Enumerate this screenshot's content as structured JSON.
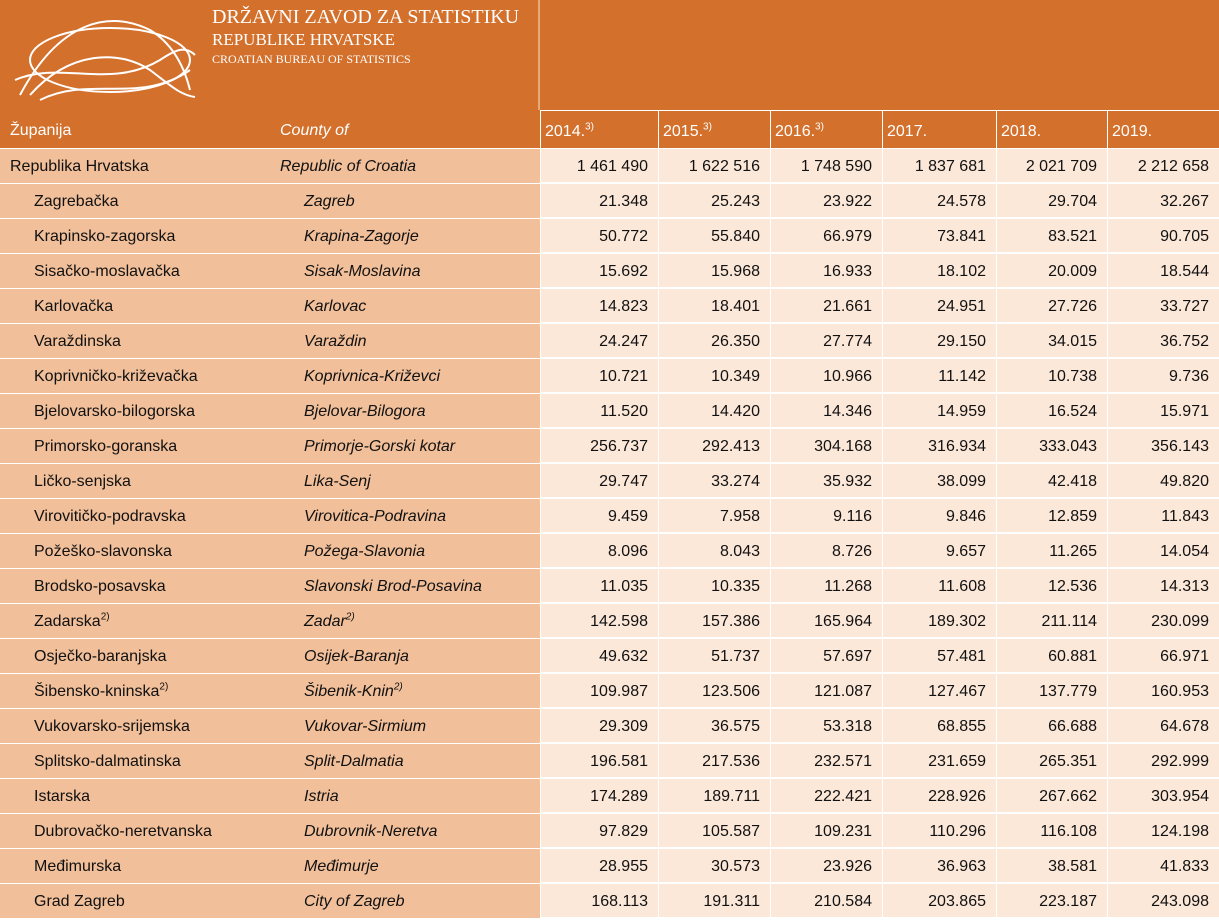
{
  "header": {
    "logo_lines": [
      "DRŽAVNI ZAVOD ZA STATISTIKU",
      "REPUBLIKE HRVATSKE",
      "CROATIAN BUREAU OF STATISTICS"
    ]
  },
  "table": {
    "columns": {
      "county_hr": "Županija",
      "county_en": "County of",
      "years": [
        {
          "year": "2014.",
          "note": "3)"
        },
        {
          "year": "2015.",
          "note": "3)"
        },
        {
          "year": "2016.",
          "note": "3)"
        },
        {
          "year": "2017."
        },
        {
          "year": "2018."
        },
        {
          "year": "2019."
        }
      ]
    },
    "rows": [
      {
        "county_hr": "Republika Hrvatska",
        "county_en": "Republic of Croatia",
        "values": [
          "1 461 490",
          "1 622 516",
          "1 748 590",
          "1 837 681",
          "2 021 709",
          "2 212 658"
        ]
      },
      {
        "county_hr": "Zagrebačka",
        "county_en": "Zagreb",
        "values": [
          "21.348",
          "25.243",
          "23.922",
          "24.578",
          "29.704",
          "32.267"
        ]
      },
      {
        "county_hr": "Krapinsko-zagorska",
        "county_en": "Krapina-Zagorje",
        "values": [
          "50.772",
          "55.840",
          "66.979",
          "73.841",
          "83.521",
          "90.705"
        ]
      },
      {
        "county_hr": "Sisačko-moslavačka",
        "county_en": "Sisak-Moslavina",
        "values": [
          "15.692",
          "15.968",
          "16.933",
          "18.102",
          "20.009",
          "18.544"
        ]
      },
      {
        "county_hr": "Karlovačka",
        "county_en": "Karlovac",
        "values": [
          "14.823",
          "18.401",
          "21.661",
          "24.951",
          "27.726",
          "33.727"
        ]
      },
      {
        "county_hr": "Varaždinska",
        "county_en": "Varaždin",
        "values": [
          "24.247",
          "26.350",
          "27.774",
          "29.150",
          "34.015",
          "36.752"
        ]
      },
      {
        "county_hr": "Koprivničko-križevačka",
        "county_en": "Koprivnica-Križevci",
        "values": [
          "10.721",
          "10.349",
          "10.966",
          "11.142",
          "10.738",
          "9.736"
        ]
      },
      {
        "county_hr": "Bjelovarsko-bilogorska",
        "county_en": "Bjelovar-Bilogora",
        "values": [
          "11.520",
          "14.420",
          "14.346",
          "14.959",
          "16.524",
          "15.971"
        ]
      },
      {
        "county_hr": "Primorsko-goranska",
        "county_en": "Primorje-Gorski kotar",
        "values": [
          "256.737",
          "292.413",
          "304.168",
          "316.934",
          "333.043",
          "356.143"
        ]
      },
      {
        "county_hr": "Ličko-senjska",
        "county_en": "Lika-Senj",
        "values": [
          "29.747",
          "33.274",
          "35.932",
          "38.099",
          "42.418",
          "49.820"
        ]
      },
      {
        "county_hr": "Virovitičko-podravska",
        "county_en": "Virovitica-Podravina",
        "values": [
          "9.459",
          "7.958",
          "9.116",
          "9.846",
          "12.859",
          "11.843"
        ]
      },
      {
        "county_hr": "Požeško-slavonska",
        "county_en": "Požega-Slavonia",
        "values": [
          "8.096",
          "8.043",
          "8.726",
          "9.657",
          "11.265",
          "14.054"
        ]
      },
      {
        "county_hr": "Brodsko-posavska",
        "county_en": "Slavonski Brod-Posavina",
        "values": [
          "11.035",
          "10.335",
          "11.268",
          "11.608",
          "12.536",
          "14.313"
        ]
      },
      {
        "county_hr": "Zadarska",
        "county_en": "Zadar",
        "note": "2)",
        "values": [
          "142.598",
          "157.386",
          "165.964",
          "189.302",
          "211.114",
          "230.099"
        ]
      },
      {
        "county_hr": "Osječko-baranjska",
        "county_en": "Osijek-Baranja",
        "values": [
          "49.632",
          "51.737",
          "57.697",
          "57.481",
          "60.881",
          "66.971"
        ]
      },
      {
        "county_hr": "Šibensko-kninska",
        "county_en": "Šibenik-Knin",
        "note": "2)",
        "values": [
          "109.987",
          "123.506",
          "121.087",
          "127.467",
          "137.779",
          "160.953"
        ]
      },
      {
        "county_hr": "Vukovarsko-srijemska",
        "county_en": "Vukovar-Sirmium",
        "values": [
          "29.309",
          "36.575",
          "53.318",
          "68.855",
          "66.688",
          "64.678"
        ]
      },
      {
        "county_hr": "Splitsko-dalmatinska",
        "county_en": "Split-Dalmatia",
        "values": [
          "196.581",
          "217.536",
          "232.571",
          "231.659",
          "265.351",
          "292.999"
        ]
      },
      {
        "county_hr": "Istarska",
        "county_en": "Istria",
        "values": [
          "174.289",
          "189.711",
          "222.421",
          "228.926",
          "267.662",
          "303.954"
        ]
      },
      {
        "county_hr": "Dubrovačko-neretvanska",
        "county_en": "Dubrovnik-Neretva",
        "values": [
          "97.829",
          "105.587",
          "109.231",
          "110.296",
          "116.108",
          "124.198"
        ]
      },
      {
        "county_hr": "Međimurska",
        "county_en": "Međimurje",
        "values": [
          "28.955",
          "30.573",
          "23.926",
          "36.963",
          "38.581",
          "41.833"
        ]
      },
      {
        "county_hr": "Grad Zagreb",
        "county_en": "City of Zagreb",
        "values": [
          "168.113",
          "191.311",
          "210.584",
          "203.865",
          "223.187",
          "243.098"
        ]
      }
    ]
  }
}
